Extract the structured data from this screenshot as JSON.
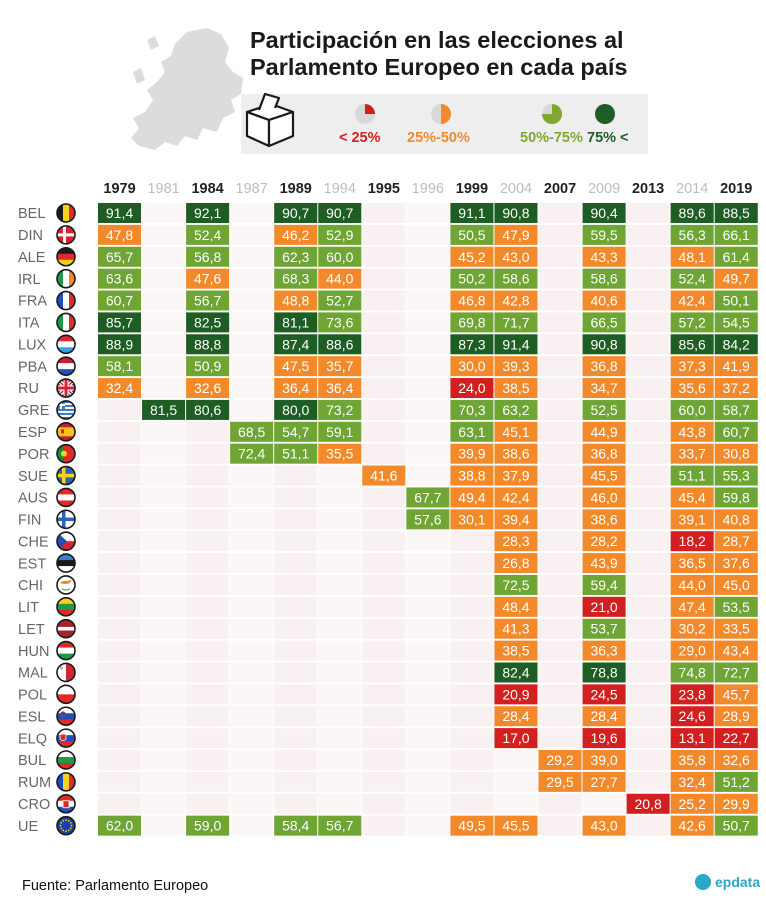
{
  "title": {
    "line1": "Participación en las elecciones al",
    "line2": "Parlamento Europeo en cada país"
  },
  "legend": [
    {
      "label": "< 25%",
      "color": "#d21f1f"
    },
    {
      "label": "25%-50%",
      "color": "#f28a2c"
    },
    {
      "label": "50%-75%",
      "color": "#7ea832"
    },
    {
      "label": "75% <",
      "color": "#1e5d23"
    }
  ],
  "source": "Fuente: Parlamento Europeo",
  "logo": "epdata",
  "colors": {
    "low": "#d21f1f",
    "midlow": "#f28a2c",
    "midhigh": "#6ea534",
    "high": "#1e5d23",
    "empty_a": "#f9f1f1",
    "empty_b": "#fcf7f7"
  },
  "chart_data": {
    "type": "heatmap",
    "title": "Participación en las elecciones al Parlamento Europeo en cada país",
    "x": [
      "1979",
      "1981",
      "1984",
      "1987",
      "1989",
      "1994",
      "1995",
      "1996",
      "1999",
      "2004",
      "2007",
      "2009",
      "2013",
      "2014",
      "2019"
    ],
    "highlight_years": [
      "1979",
      "1984",
      "1989",
      "1995",
      "1999",
      "2007",
      "2013",
      "2019"
    ],
    "rows": [
      {
        "label": "BEL",
        "flag": "belgium-flag",
        "values": [
          91.4,
          null,
          92.1,
          null,
          90.7,
          90.7,
          null,
          null,
          91.1,
          90.8,
          null,
          90.4,
          null,
          89.6,
          88.5
        ]
      },
      {
        "label": "DIN",
        "flag": "denmark-flag",
        "values": [
          47.8,
          null,
          52.4,
          null,
          46.2,
          52.9,
          null,
          null,
          50.5,
          47.9,
          null,
          59.5,
          null,
          56.3,
          66.1
        ]
      },
      {
        "label": "ALE",
        "flag": "germany-flag",
        "values": [
          65.7,
          null,
          56.8,
          null,
          62.3,
          60.0,
          null,
          null,
          45.2,
          43.0,
          null,
          43.3,
          null,
          48.1,
          61.4
        ]
      },
      {
        "label": "IRL",
        "flag": "ireland-flag",
        "values": [
          63.6,
          null,
          47.6,
          null,
          68.3,
          44.0,
          null,
          null,
          50.2,
          58.6,
          null,
          58.6,
          null,
          52.4,
          49.7
        ]
      },
      {
        "label": "FRA",
        "flag": "france-flag",
        "values": [
          60.7,
          null,
          56.7,
          null,
          48.8,
          52.7,
          null,
          null,
          46.8,
          42.8,
          null,
          40.6,
          null,
          42.4,
          50.1
        ]
      },
      {
        "label": "ITA",
        "flag": "italy-flag",
        "values": [
          85.7,
          null,
          82.5,
          null,
          81.1,
          73.6,
          null,
          null,
          69.8,
          71.7,
          null,
          66.5,
          null,
          57.2,
          54.5
        ]
      },
      {
        "label": "LUX",
        "flag": "luxembourg-flag",
        "values": [
          88.9,
          null,
          88.8,
          null,
          87.4,
          88.6,
          null,
          null,
          87.3,
          91.4,
          null,
          90.8,
          null,
          85.6,
          84.2
        ]
      },
      {
        "label": "PBA",
        "flag": "netherlands-flag",
        "values": [
          58.1,
          null,
          50.9,
          null,
          47.5,
          35.7,
          null,
          null,
          30.0,
          39.3,
          null,
          36.8,
          null,
          37.3,
          41.9
        ]
      },
      {
        "label": "RU",
        "flag": "uk-flag",
        "values": [
          32.4,
          null,
          32.6,
          null,
          36.4,
          36.4,
          null,
          null,
          24.0,
          38.5,
          null,
          34.7,
          null,
          35.6,
          37.2
        ]
      },
      {
        "label": "GRE",
        "flag": "greece-flag",
        "values": [
          null,
          81.5,
          80.6,
          null,
          80.0,
          73.2,
          null,
          null,
          70.3,
          63.2,
          null,
          52.5,
          null,
          60.0,
          58.7
        ]
      },
      {
        "label": "ESP",
        "flag": "spain-flag",
        "values": [
          null,
          null,
          null,
          68.5,
          54.7,
          59.1,
          null,
          null,
          63.1,
          45.1,
          null,
          44.9,
          null,
          43.8,
          60.7
        ]
      },
      {
        "label": "POR",
        "flag": "portugal-flag",
        "values": [
          null,
          null,
          null,
          72.4,
          51.1,
          35.5,
          null,
          null,
          39.9,
          38.6,
          null,
          36.8,
          null,
          33.7,
          30.8
        ]
      },
      {
        "label": "SUE",
        "flag": "sweden-flag",
        "values": [
          null,
          null,
          null,
          null,
          null,
          null,
          41.6,
          null,
          38.8,
          37.9,
          null,
          45.5,
          null,
          51.1,
          55.3
        ]
      },
      {
        "label": "AUS",
        "flag": "austria-flag",
        "values": [
          null,
          null,
          null,
          null,
          null,
          null,
          null,
          67.7,
          49.4,
          42.4,
          null,
          46.0,
          null,
          45.4,
          59.8
        ]
      },
      {
        "label": "FIN",
        "flag": "finland-flag",
        "values": [
          null,
          null,
          null,
          null,
          null,
          null,
          null,
          57.6,
          30.1,
          39.4,
          null,
          38.6,
          null,
          39.1,
          40.8
        ]
      },
      {
        "label": "CHE",
        "flag": "czech-flag",
        "values": [
          null,
          null,
          null,
          null,
          null,
          null,
          null,
          null,
          null,
          28.3,
          null,
          28.2,
          null,
          18.2,
          28.7
        ]
      },
      {
        "label": "EST",
        "flag": "estonia-flag",
        "values": [
          null,
          null,
          null,
          null,
          null,
          null,
          null,
          null,
          null,
          26.8,
          null,
          43.9,
          null,
          36.5,
          37.6
        ]
      },
      {
        "label": "CHI",
        "flag": "cyprus-flag",
        "values": [
          null,
          null,
          null,
          null,
          null,
          null,
          null,
          null,
          null,
          72.5,
          null,
          59.4,
          null,
          44.0,
          45.0
        ]
      },
      {
        "label": "LIT",
        "flag": "lithuania-flag",
        "values": [
          null,
          null,
          null,
          null,
          null,
          null,
          null,
          null,
          null,
          48.4,
          null,
          21.0,
          null,
          47.4,
          53.5
        ]
      },
      {
        "label": "LET",
        "flag": "latvia-flag",
        "values": [
          null,
          null,
          null,
          null,
          null,
          null,
          null,
          null,
          null,
          41.3,
          null,
          53.7,
          null,
          30.2,
          33.5
        ]
      },
      {
        "label": "HUN",
        "flag": "hungary-flag",
        "values": [
          null,
          null,
          null,
          null,
          null,
          null,
          null,
          null,
          null,
          38.5,
          null,
          36.3,
          null,
          29.0,
          43.4
        ]
      },
      {
        "label": "MAL",
        "flag": "malta-flag",
        "values": [
          null,
          null,
          null,
          null,
          null,
          null,
          null,
          null,
          null,
          82.4,
          null,
          78.8,
          null,
          74.8,
          72.7
        ]
      },
      {
        "label": "POL",
        "flag": "poland-flag",
        "values": [
          null,
          null,
          null,
          null,
          null,
          null,
          null,
          null,
          null,
          20.9,
          null,
          24.5,
          null,
          23.8,
          45.7
        ]
      },
      {
        "label": "ESL",
        "flag": "slovenia-flag",
        "values": [
          null,
          null,
          null,
          null,
          null,
          null,
          null,
          null,
          null,
          28.4,
          null,
          28.4,
          null,
          24.6,
          28.9
        ]
      },
      {
        "label": "ELQ",
        "flag": "slovakia-flag",
        "values": [
          null,
          null,
          null,
          null,
          null,
          null,
          null,
          null,
          null,
          17.0,
          null,
          19.6,
          null,
          13.1,
          22.7
        ]
      },
      {
        "label": "BUL",
        "flag": "bulgaria-flag",
        "values": [
          null,
          null,
          null,
          null,
          null,
          null,
          null,
          null,
          null,
          null,
          29.2,
          39.0,
          null,
          35.8,
          32.6
        ]
      },
      {
        "label": "RUM",
        "flag": "romania-flag",
        "values": [
          null,
          null,
          null,
          null,
          null,
          null,
          null,
          null,
          null,
          null,
          29.5,
          27.7,
          null,
          32.4,
          51.2
        ]
      },
      {
        "label": "CRO",
        "flag": "croatia-flag",
        "values": [
          null,
          null,
          null,
          null,
          null,
          null,
          null,
          null,
          null,
          null,
          null,
          null,
          20.8,
          25.2,
          29.9
        ]
      },
      {
        "label": "UE",
        "flag": "eu-flag",
        "values": [
          62.0,
          null,
          59.0,
          null,
          58.4,
          56.7,
          null,
          null,
          49.5,
          45.5,
          null,
          43.0,
          null,
          42.6,
          50.7
        ]
      }
    ]
  }
}
